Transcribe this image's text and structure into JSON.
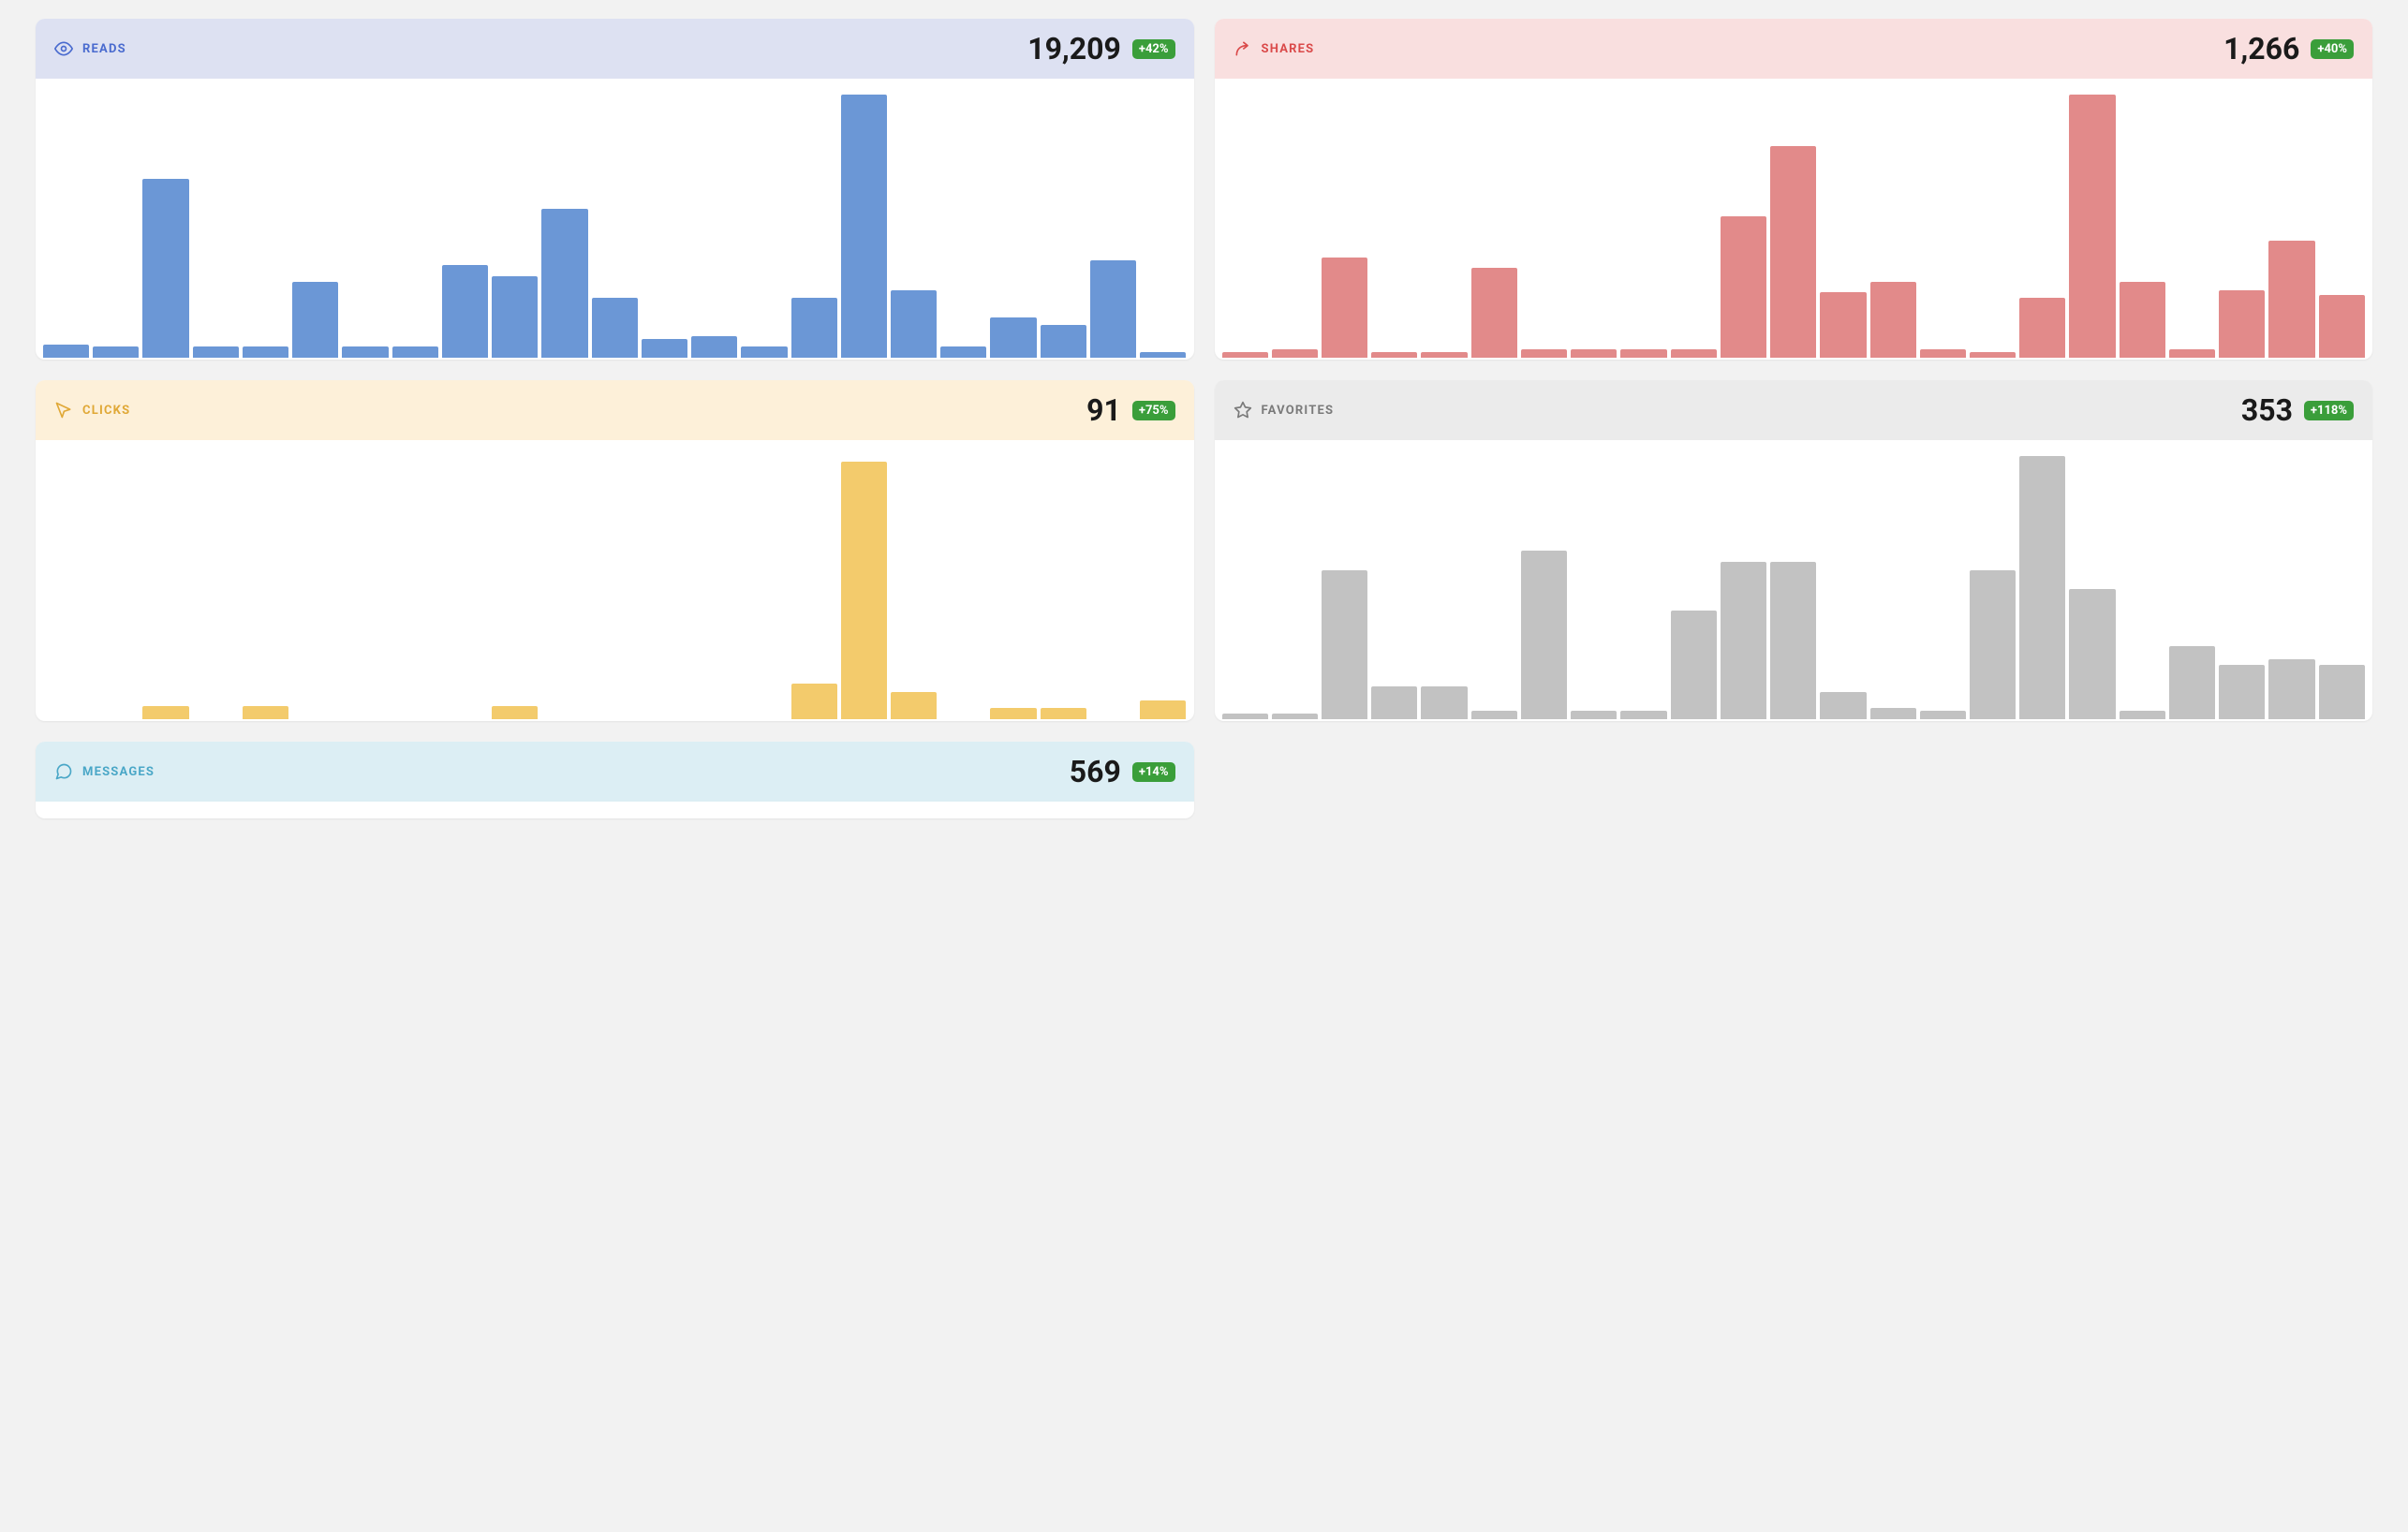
{
  "page_bg": "#f2f2f2",
  "badge_bg": "#3a9e3a",
  "badge_fg": "#ffffff",
  "cards": {
    "reads": {
      "label": "READS",
      "value": "19,209",
      "delta": "+42%",
      "header_bg": "#dde1f2",
      "label_color": "#4a6bcf",
      "icon_color": "#4a6bcf",
      "chart": {
        "type": "bar",
        "bar_color": "#6b97d6",
        "background_color": "#ffffff",
        "ylim": [
          0,
          100
        ],
        "values": [
          5,
          4,
          66,
          4,
          4,
          28,
          4,
          4,
          34,
          30,
          55,
          22,
          7,
          8,
          4,
          22,
          97,
          25,
          4,
          15,
          12,
          36,
          2
        ]
      }
    },
    "shares": {
      "label": "SHARES",
      "value": "1,266",
      "delta": "+40%",
      "header_bg": "#f9dfdf",
      "label_color": "#da4a4a",
      "icon_color": "#da4a4a",
      "chart": {
        "type": "bar",
        "bar_color": "#e28a8a",
        "background_color": "#ffffff",
        "ylim": [
          0,
          100
        ],
        "values": [
          2,
          3,
          37,
          2,
          2,
          33,
          3,
          3,
          3,
          3,
          52,
          78,
          24,
          28,
          3,
          2,
          22,
          97,
          28,
          3,
          25,
          43,
          23
        ]
      }
    },
    "clicks": {
      "label": "CLICKS",
      "value": "91",
      "delta": "+75%",
      "header_bg": "#fdf0d9",
      "label_color": "#e0a836",
      "icon_color": "#e0a836",
      "chart": {
        "type": "bar",
        "bar_color": "#f3cb6c",
        "background_color": "#ffffff",
        "ylim": [
          0,
          100
        ],
        "values": [
          0,
          0,
          5,
          0,
          5,
          0,
          0,
          0,
          0,
          5,
          0,
          0,
          0,
          0,
          0,
          13,
          95,
          10,
          0,
          4,
          4,
          0,
          7
        ]
      }
    },
    "favorites": {
      "label": "FAVORITES",
      "value": "353",
      "delta": "+118%",
      "header_bg": "#ebebeb",
      "label_color": "#7a7a7a",
      "icon_color": "#7a7a7a",
      "chart": {
        "type": "bar",
        "bar_color": "#c2c2c2",
        "background_color": "#ffffff",
        "ylim": [
          0,
          100
        ],
        "values": [
          2,
          2,
          55,
          12,
          12,
          3,
          62,
          3,
          3,
          40,
          58,
          58,
          10,
          4,
          3,
          55,
          97,
          48,
          3,
          27,
          20,
          22,
          20
        ]
      }
    },
    "messages": {
      "label": "MESSAGES",
      "value": "569",
      "delta": "+14%",
      "header_bg": "#dceef4",
      "label_color": "#4aa7c7",
      "icon_color": "#4aa7c7",
      "chart": {
        "type": "bar",
        "bar_color": "#7bc4da",
        "background_color": "#ffffff",
        "ylim": [
          0,
          100
        ],
        "values": []
      }
    }
  }
}
